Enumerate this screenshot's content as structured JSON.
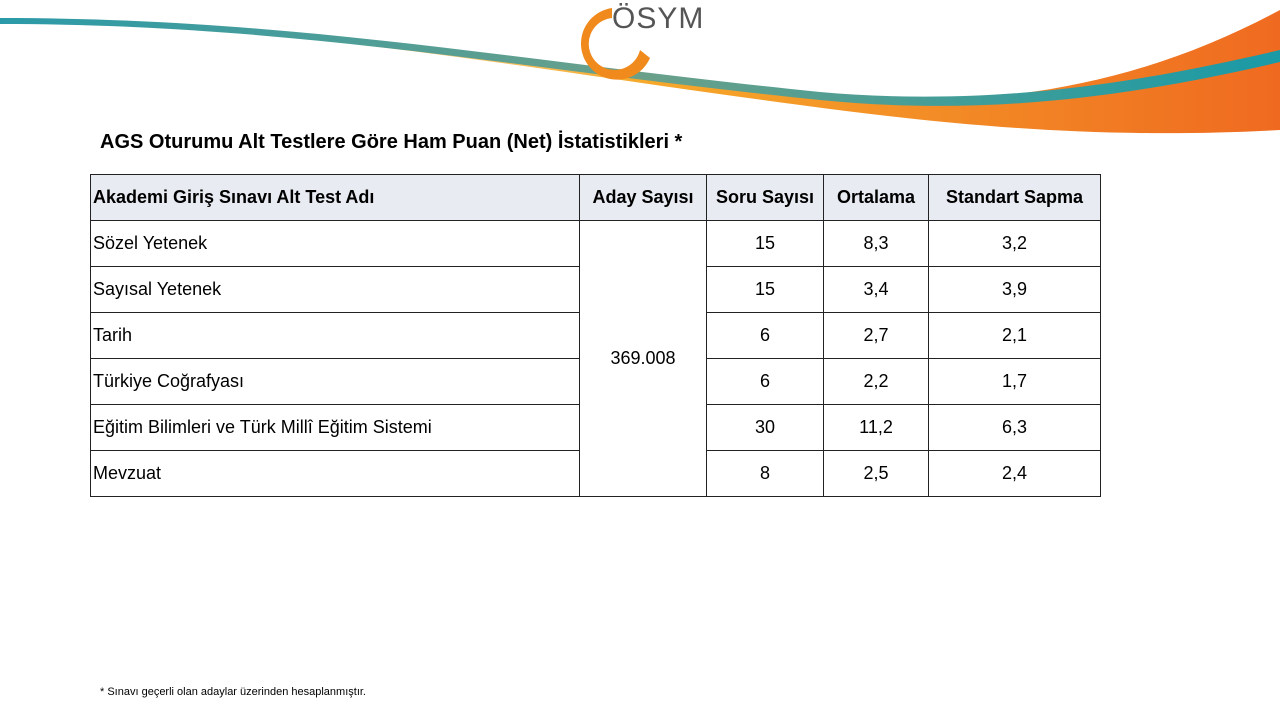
{
  "header": {
    "logo": "ÖSYM"
  },
  "title": "AGS Oturumu Alt Testlere Göre Ham Puan (Net) İstatistikleri *",
  "table": {
    "columns": [
      "Akademi Giriş Sınavı Alt Test Adı",
      "Aday Sayısı",
      "Soru Sayısı",
      "Ortalama",
      "Standart Sapma"
    ],
    "candidate_count": "369.008",
    "rows": [
      [
        "Sözel Yetenek",
        "15",
        "8,3",
        "3,2"
      ],
      [
        "Sayısal Yetenek",
        "15",
        "3,4",
        "3,9"
      ],
      [
        "Tarih",
        "6",
        "2,7",
        "2,1"
      ],
      [
        "Türkiye Coğrafyası",
        "6",
        "2,2",
        "1,7"
      ],
      [
        "Eğitim Bilimleri ve Türk Millî Eğitim Sistemi",
        "30",
        "11,2",
        "6,3"
      ],
      [
        "Mevzuat",
        "8",
        "2,5",
        "2,4"
      ]
    ]
  },
  "footnote": "* Sınavı geçerli olan adaylar üzerinden hesaplanmıştır."
}
